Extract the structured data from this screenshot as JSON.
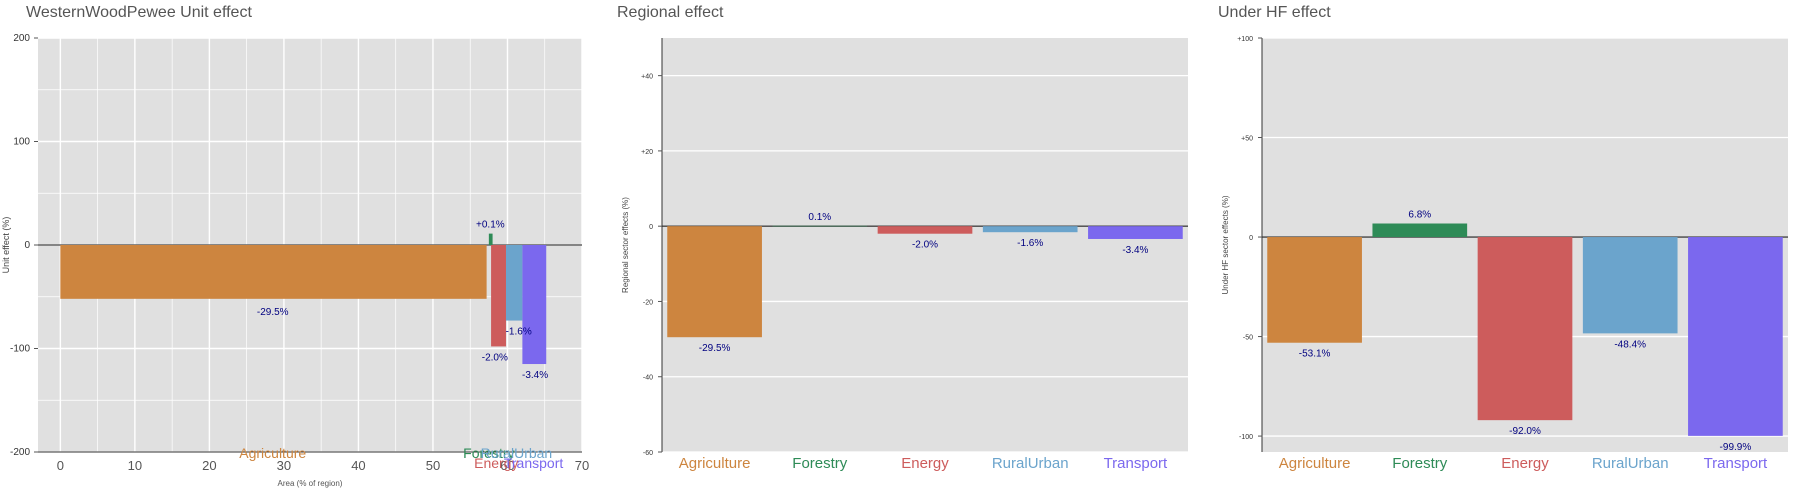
{
  "chart_data": [
    {
      "type": "bar",
      "title": "WesternWoodPewee Unit effect",
      "xlabel": "Area (% of region)",
      "ylabel": "Unit effect (%)",
      "xlim": [
        -3,
        70
      ],
      "ylim": [
        -200,
        200
      ],
      "yticks": [
        "200",
        "100",
        "0",
        "-100",
        "-200"
      ],
      "ytick_values": [
        200,
        100,
        0,
        -100,
        -200
      ],
      "xticks": [
        "0",
        "10",
        "20",
        "30",
        "40",
        "50",
        "60",
        "70"
      ],
      "xtick_values": [
        0,
        10,
        20,
        30,
        40,
        50,
        60,
        70
      ],
      "grid": true,
      "categories": [
        "Agriculture",
        "Forestry",
        "Energy",
        "RuralUrban",
        "Transport"
      ],
      "colors": [
        "#CD853F",
        "#2E8B57",
        "#CD5C5C",
        "#6BA4CC",
        "#7B68EE"
      ],
      "bars": [
        {
          "x0": 0,
          "x1": 57.2,
          "value": -52,
          "label": "-29.5%"
        },
        {
          "x0": 57.5,
          "x1": 58.0,
          "value": 11,
          "label": "+0.1%"
        },
        {
          "x0": 57.8,
          "x1": 59.8,
          "value": -98,
          "label": "-2.0%"
        },
        {
          "x0": 59.8,
          "x1": 62.0,
          "value": -73,
          "label": "-1.6%"
        },
        {
          "x0": 62.0,
          "x1": 65.2,
          "value": -115,
          "label": "-3.4%"
        }
      ]
    },
    {
      "type": "bar",
      "title": "Regional effect",
      "ylabel": "Regional sector effects (%)",
      "ylim": [
        -60,
        50
      ],
      "yticks": [
        "+40",
        "+20",
        "0",
        "-20",
        "-40",
        "-60"
      ],
      "ytick_values": [
        40,
        20,
        0,
        -20,
        -40,
        -60
      ],
      "grid": true,
      "categories": [
        "Agriculture",
        "Forestry",
        "Energy",
        "RuralUrban",
        "Transport"
      ],
      "colors": [
        "#CD853F",
        "#2E8B57",
        "#CD5C5C",
        "#6BA4CC",
        "#7B68EE"
      ],
      "values": [
        -29.5,
        0.1,
        -2.0,
        -1.6,
        -3.4
      ],
      "labels": [
        "-29.5%",
        "0.1%",
        "-2.0%",
        "-1.6%",
        "-3.4%"
      ]
    },
    {
      "type": "bar",
      "title": "Under HF effect",
      "ylabel": "Under HF sector effects (%)",
      "ylim": [
        -108,
        100
      ],
      "yticks": [
        "+100",
        "+50",
        "0",
        "-50",
        "-100"
      ],
      "ytick_values": [
        100,
        50,
        0,
        -50,
        -100
      ],
      "grid": true,
      "categories": [
        "Agriculture",
        "Forestry",
        "Energy",
        "RuralUrban",
        "Transport"
      ],
      "colors": [
        "#CD853F",
        "#2E8B57",
        "#CD5C5C",
        "#6BA4CC",
        "#7B68EE"
      ],
      "values": [
        -53.1,
        6.8,
        -92.0,
        -48.4,
        -99.9
      ],
      "labels": [
        "-53.1%",
        "6.8%",
        "-92.0%",
        "-48.4%",
        "-99.9%"
      ]
    }
  ]
}
